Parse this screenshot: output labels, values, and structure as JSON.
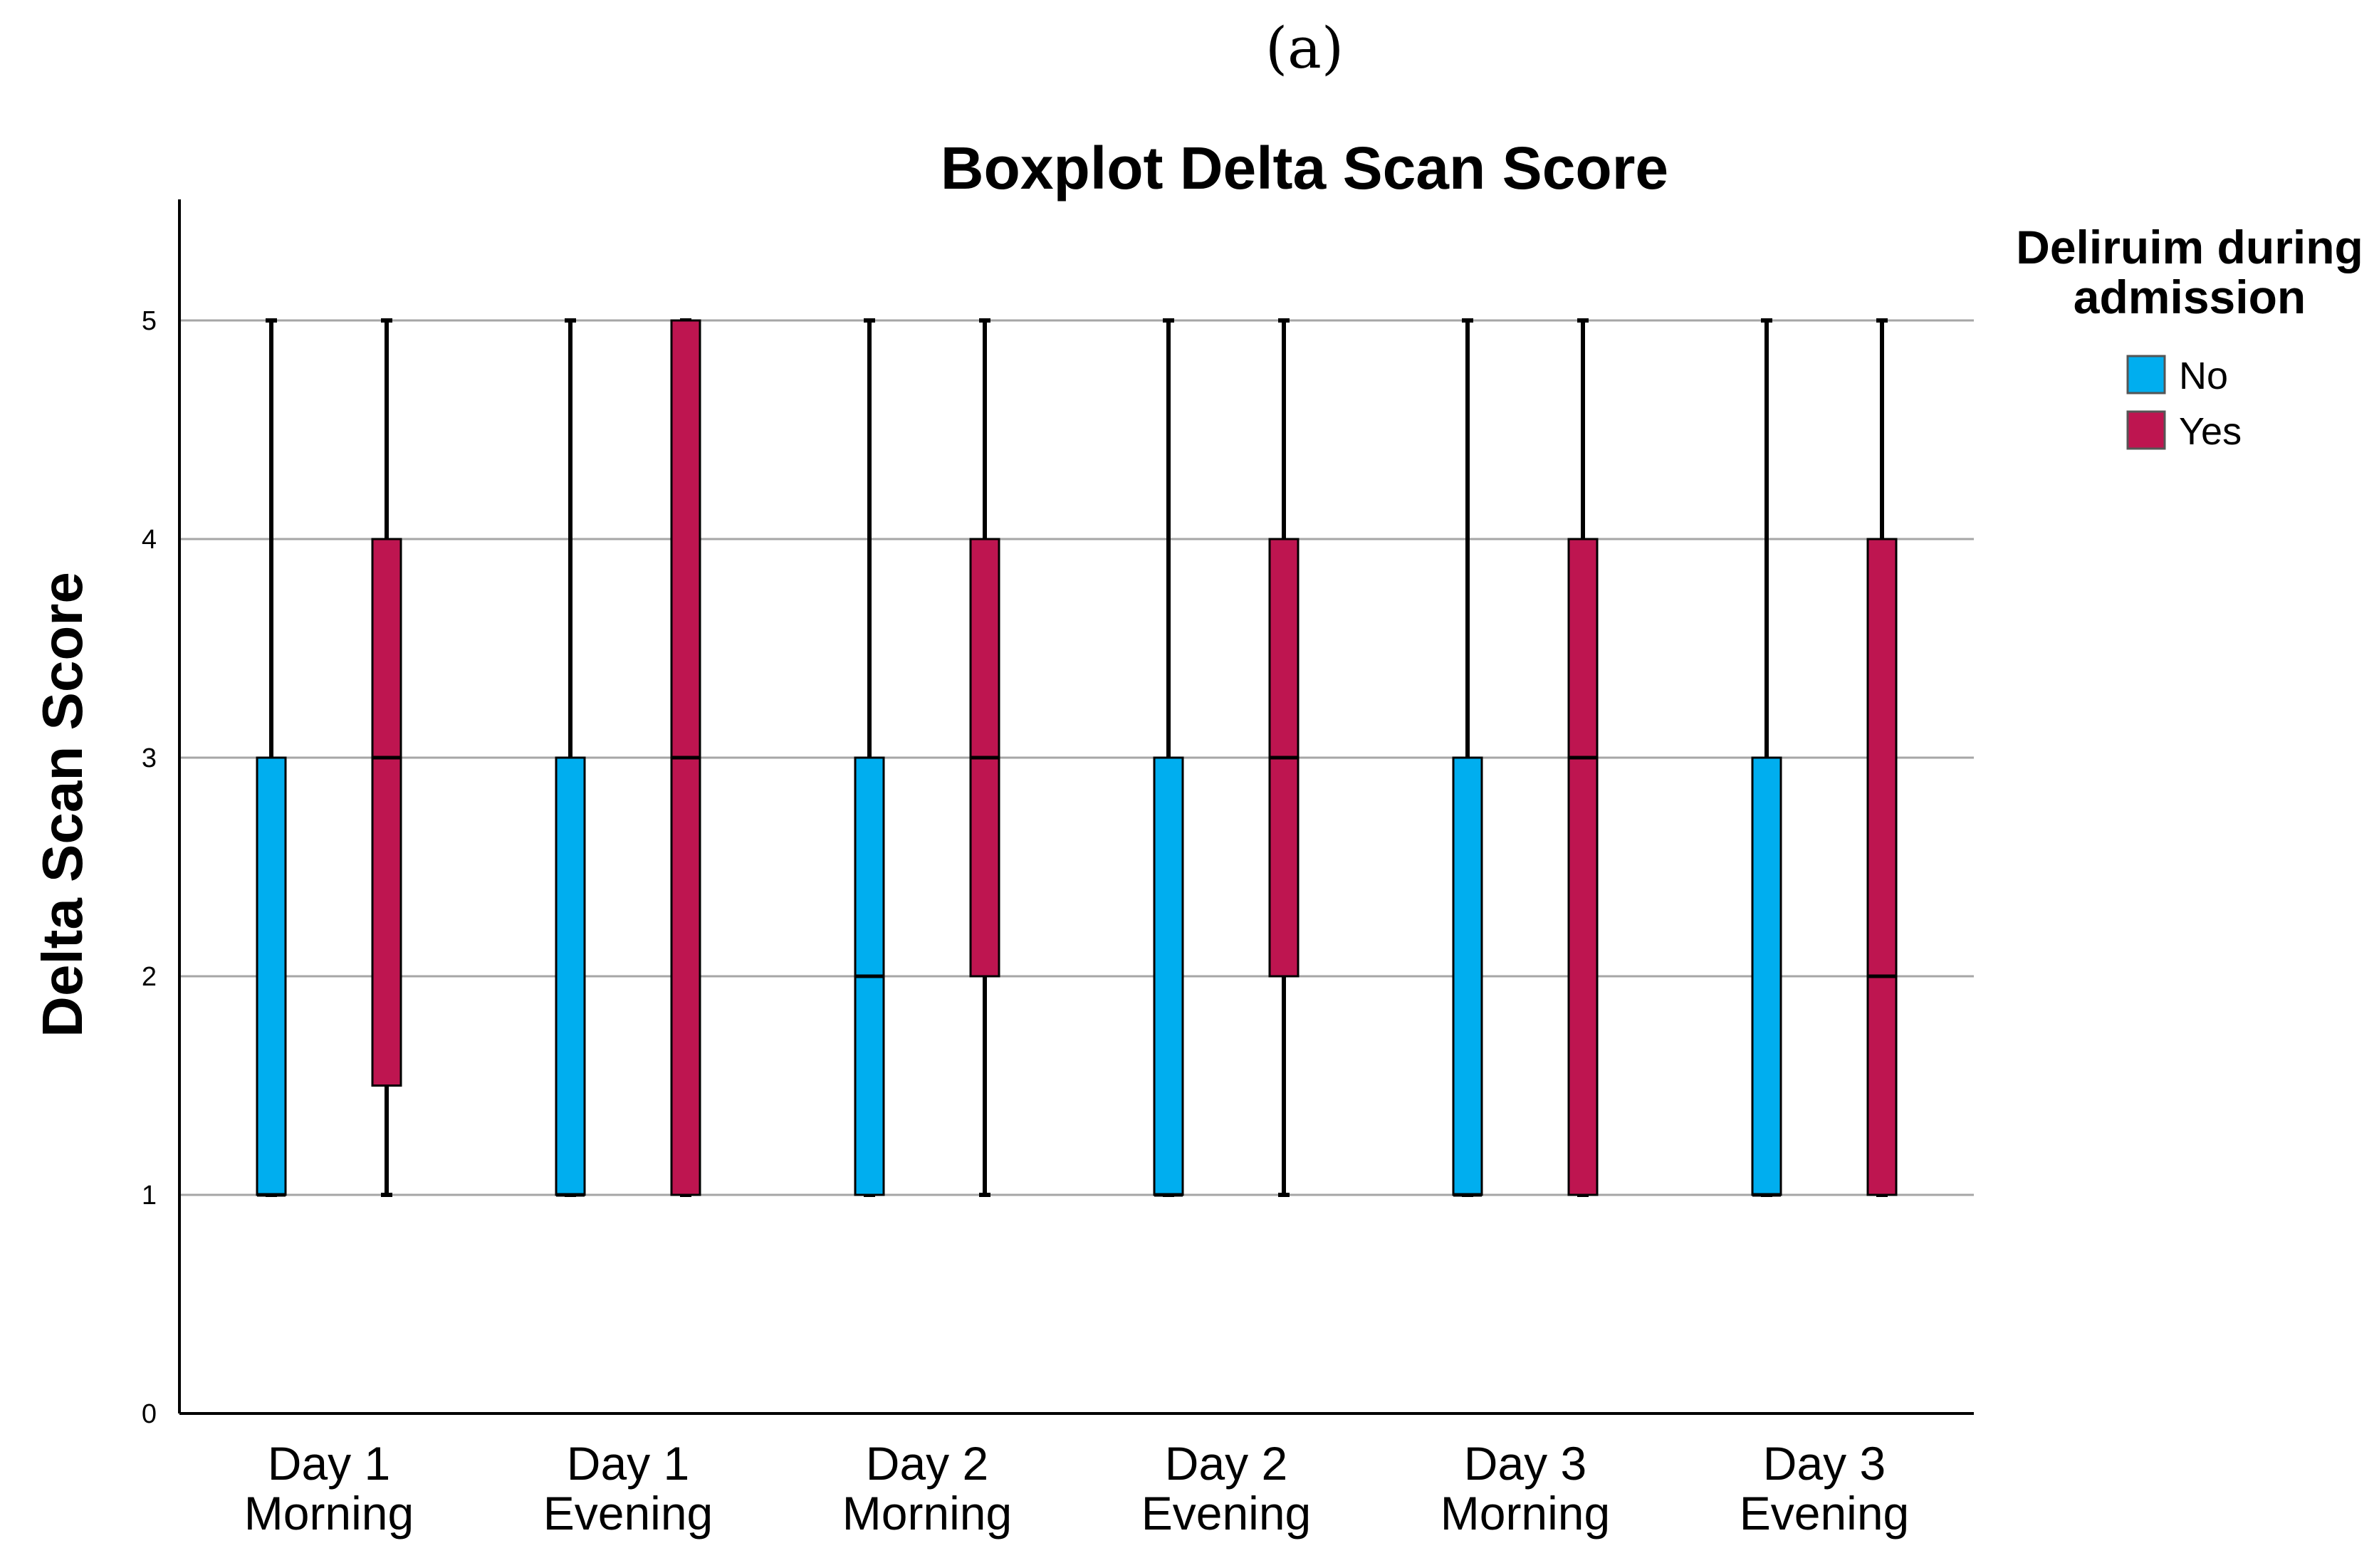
{
  "panel_label": "(a)",
  "chart_data": {
    "type": "boxplot",
    "title": "Boxplot Delta Scan Score",
    "xlabel": "",
    "ylabel": "Delta Scan Score",
    "ylim": [
      0,
      5
    ],
    "yticks": [
      0,
      1,
      2,
      3,
      4,
      5
    ],
    "grid": true,
    "legend_position": "right",
    "categories": [
      [
        "Day 1",
        "Morning"
      ],
      [
        "Day 1",
        "Evening"
      ],
      [
        "Day 2",
        "Morning"
      ],
      [
        "Day 2",
        "Evening"
      ],
      [
        "Day 3",
        "Morning"
      ],
      [
        "Day 3",
        "Evening"
      ]
    ],
    "legend": {
      "title_lines": [
        "Deliruim during",
        "admission"
      ]
    },
    "series": [
      {
        "name": "No",
        "color": "#00AEEF",
        "boxes": [
          {
            "min": 1,
            "q1": 1,
            "median": 1,
            "q3": 3,
            "max": 5
          },
          {
            "min": 1,
            "q1": 1,
            "median": 1,
            "q3": 3,
            "max": 5
          },
          {
            "min": 1,
            "q1": 1,
            "median": 2,
            "q3": 3,
            "max": 5
          },
          {
            "min": 1,
            "q1": 1,
            "median": 1,
            "q3": 3,
            "max": 5
          },
          {
            "min": 1,
            "q1": 1,
            "median": 1,
            "q3": 3,
            "max": 5
          },
          {
            "min": 1,
            "q1": 1,
            "median": 1,
            "q3": 3,
            "max": 5
          }
        ]
      },
      {
        "name": "Yes",
        "color": "#BE1550",
        "boxes": [
          {
            "min": 1,
            "q1": 1.5,
            "median": 3,
            "q3": 4,
            "max": 5
          },
          {
            "min": 1,
            "q1": 1,
            "median": 3,
            "q3": 5,
            "max": 5
          },
          {
            "min": 1,
            "q1": 2,
            "median": 3,
            "q3": 4,
            "max": 5
          },
          {
            "min": 1,
            "q1": 2,
            "median": 3,
            "q3": 4,
            "max": 5
          },
          {
            "min": 1,
            "q1": 1,
            "median": 3,
            "q3": 4,
            "max": 5
          },
          {
            "min": 1,
            "q1": 1,
            "median": 2,
            "q3": 4,
            "max": 5
          }
        ]
      }
    ]
  }
}
